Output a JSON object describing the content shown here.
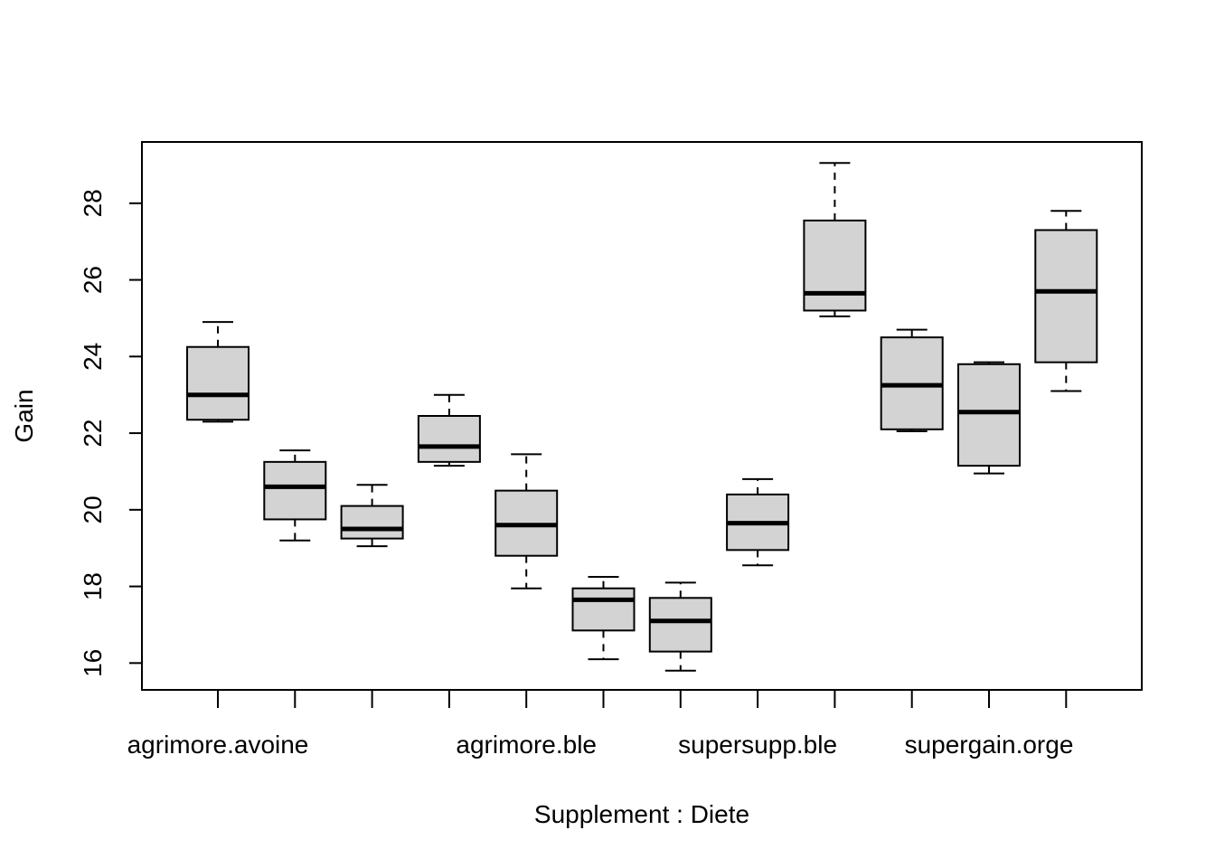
{
  "chart_data": {
    "type": "boxplot",
    "title": "",
    "xlabel": "Supplement : Diete",
    "ylabel": "Gain",
    "ylim": [
      15.3,
      29.6
    ],
    "yticks": [
      16,
      18,
      20,
      22,
      24,
      26,
      28
    ],
    "category_count": 12,
    "shown_category_labels": [
      {
        "index": 1,
        "label": "agrimore.avoine"
      },
      {
        "index": 5,
        "label": "agrimore.ble"
      },
      {
        "index": 8,
        "label": "supersupp.ble"
      },
      {
        "index": 11,
        "label": "supergain.orge"
      }
    ],
    "boxes": [
      {
        "min": 22.3,
        "q1": 22.35,
        "median": 23.0,
        "q3": 24.25,
        "max": 24.9
      },
      {
        "min": 19.2,
        "q1": 19.75,
        "median": 20.6,
        "q3": 21.25,
        "max": 21.55
      },
      {
        "min": 19.05,
        "q1": 19.25,
        "median": 19.5,
        "q3": 20.1,
        "max": 20.65
      },
      {
        "min": 21.15,
        "q1": 21.25,
        "median": 21.65,
        "q3": 22.45,
        "max": 23.0
      },
      {
        "min": 17.95,
        "q1": 18.8,
        "median": 19.6,
        "q3": 20.5,
        "max": 21.45
      },
      {
        "min": 16.1,
        "q1": 16.85,
        "median": 17.65,
        "q3": 17.95,
        "max": 18.25
      },
      {
        "min": 15.8,
        "q1": 16.3,
        "median": 17.1,
        "q3": 17.7,
        "max": 18.1
      },
      {
        "min": 18.55,
        "q1": 18.95,
        "median": 19.65,
        "q3": 20.4,
        "max": 20.8
      },
      {
        "min": 25.05,
        "q1": 25.2,
        "median": 25.65,
        "q3": 27.55,
        "max": 29.05
      },
      {
        "min": 22.05,
        "q1": 22.1,
        "median": 23.25,
        "q3": 24.5,
        "max": 24.7
      },
      {
        "min": 20.95,
        "q1": 21.15,
        "median": 22.55,
        "q3": 23.8,
        "max": 23.85
      },
      {
        "min": 23.1,
        "q1": 23.85,
        "median": 25.7,
        "q3": 27.3,
        "max": 27.8
      }
    ]
  }
}
